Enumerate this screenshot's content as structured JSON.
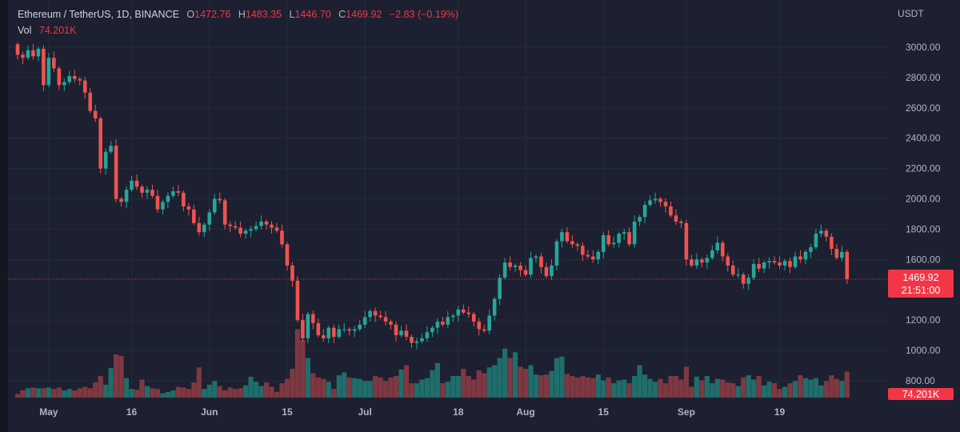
{
  "header": {
    "symbol": "Ethereum / TetherUS, 1D, BINANCE",
    "open_label": "O",
    "open": "1472.76",
    "high_label": "H",
    "high": "1483.35",
    "low_label": "L",
    "low": "1446.70",
    "close_label": "C",
    "close": "1469.92",
    "change": "−2.83 (−0.19%)",
    "volume_label": "Vol",
    "volume": "74.201K"
  },
  "price_axis": {
    "unit": "USDT",
    "ticks": [
      "3000.00",
      "2800.00",
      "2600.00",
      "2400.00",
      "2200.00",
      "2000.00",
      "1800.00",
      "1600.00",
      "1200.00",
      "1000.00",
      "800.00"
    ]
  },
  "last_price": {
    "value": "1469.92",
    "countdown": "21:51:00"
  },
  "volume_tag": "74.201K",
  "time_axis": {
    "labels": [
      "May",
      "16",
      "Jun",
      "15",
      "Jul",
      "18",
      "Aug",
      "15",
      "Sep",
      "19"
    ]
  },
  "colors": {
    "up": "#26a69a",
    "down": "#ef5350",
    "background": "#1c2030",
    "grid": "#262b3a"
  },
  "chart_data": {
    "type": "candlestick",
    "title": "Ethereum / TetherUS, 1D, BINANCE",
    "ylabel": "USDT",
    "ylim": [
      700,
      3150
    ],
    "x_start": "2022-04-25",
    "x_end": "2022-09-22",
    "close": [
      2950,
      2930,
      2980,
      2940,
      2990,
      2750,
      2930,
      2860,
      2750,
      2770,
      2810,
      2790,
      2780,
      2700,
      2580,
      2530,
      2200,
      2310,
      2350,
      2000,
      1980,
      2060,
      2120,
      2080,
      2040,
      2060,
      2020,
      1930,
      1980,
      2020,
      2050,
      2040,
      1950,
      1930,
      1840,
      1780,
      1830,
      1910,
      2000,
      1990,
      1830,
      1820,
      1810,
      1770,
      1790,
      1800,
      1820,
      1850,
      1830,
      1810,
      1790,
      1700,
      1560,
      1460,
      1200,
      1080,
      1240,
      1180,
      1100,
      1080,
      1150,
      1090,
      1140,
      1140,
      1130,
      1140,
      1170,
      1220,
      1260,
      1230,
      1220,
      1190,
      1170,
      1100,
      1130,
      1090,
      1050,
      1060,
      1080,
      1120,
      1150,
      1190,
      1170,
      1220,
      1230,
      1270,
      1250,
      1240,
      1190,
      1140,
      1130,
      1230,
      1340,
      1480,
      1580,
      1550,
      1560,
      1530,
      1500,
      1610,
      1620,
      1550,
      1490,
      1560,
      1720,
      1780,
      1720,
      1700,
      1690,
      1630,
      1620,
      1600,
      1650,
      1760,
      1700,
      1710,
      1770,
      1780,
      1700,
      1850,
      1880,
      1960,
      1990,
      2000,
      1980,
      1950,
      1890,
      1850,
      1840,
      1600,
      1560,
      1600,
      1580,
      1610,
      1660,
      1710,
      1620,
      1560,
      1500,
      1500,
      1440,
      1480,
      1570,
      1540,
      1580,
      1590,
      1580,
      1560,
      1590,
      1550,
      1620,
      1600,
      1650,
      1680,
      1770,
      1790,
      1750,
      1670,
      1610,
      1650,
      1470
    ],
    "volume_relative": [
      0.05,
      0.1,
      0.13,
      0.14,
      0.13,
      0.13,
      0.14,
      0.12,
      0.14,
      0.1,
      0.12,
      0.1,
      0.13,
      0.15,
      0.13,
      0.21,
      0.3,
      0.18,
      0.41,
      0.6,
      0.58,
      0.27,
      0.12,
      0.11,
      0.25,
      0.16,
      0.13,
      0.12,
      0.06,
      0.08,
      0.1,
      0.15,
      0.14,
      0.12,
      0.21,
      0.42,
      0.12,
      0.18,
      0.23,
      0.16,
      0.1,
      0.14,
      0.12,
      0.13,
      0.17,
      0.29,
      0.22,
      0.16,
      0.21,
      0.15,
      0.08,
      0.2,
      0.26,
      0.4,
      0.95,
      0.8,
      0.55,
      0.34,
      0.28,
      0.26,
      0.22,
      0.12,
      0.31,
      0.35,
      0.28,
      0.27,
      0.26,
      0.23,
      0.23,
      0.3,
      0.28,
      0.23,
      0.28,
      0.3,
      0.39,
      0.45,
      0.2,
      0.2,
      0.25,
      0.27,
      0.38,
      0.48,
      0.2,
      0.22,
      0.3,
      0.3,
      0.4,
      0.3,
      0.25,
      0.38,
      0.34,
      0.42,
      0.45,
      0.55,
      0.68,
      0.55,
      0.63,
      0.43,
      0.4,
      0.45,
      0.32,
      0.31,
      0.32,
      0.37,
      0.55,
      0.57,
      0.33,
      0.3,
      0.28,
      0.3,
      0.28,
      0.27,
      0.32,
      0.24,
      0.28,
      0.2,
      0.24,
      0.25,
      0.2,
      0.3,
      0.45,
      0.32,
      0.26,
      0.22,
      0.26,
      0.2,
      0.3,
      0.3,
      0.25,
      0.43,
      0.15,
      0.29,
      0.24,
      0.3,
      0.2,
      0.26,
      0.25,
      0.21,
      0.2,
      0.16,
      0.28,
      0.31,
      0.25,
      0.3,
      0.17,
      0.22,
      0.2,
      0.12,
      0.15,
      0.2,
      0.23,
      0.31,
      0.27,
      0.25,
      0.27,
      0.17,
      0.23,
      0.31,
      0.26,
      0.23,
      0.36,
      0.41,
      0.03
    ]
  }
}
